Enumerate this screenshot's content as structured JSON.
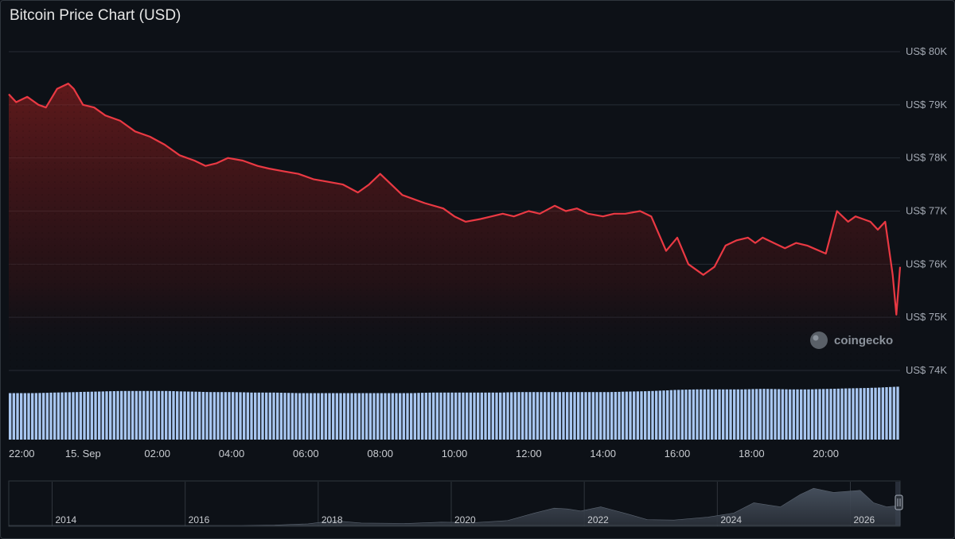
{
  "chart_data": {
    "type": "area",
    "title": "Bitcoin Price Chart (USD)",
    "currency": "USD",
    "y_tick_labels": [
      "US$ 80K",
      "US$ 79K",
      "US$ 78K",
      "US$ 77K",
      "US$ 76K",
      "US$ 75K",
      "US$ 74K"
    ],
    "y_tick_values": [
      80000,
      79000,
      78000,
      77000,
      76000,
      75000,
      74000
    ],
    "ylim": [
      74000,
      80000
    ],
    "x_tick_labels": [
      "22:00",
      "15. Sep",
      "02:00",
      "04:00",
      "06:00",
      "08:00",
      "10:00",
      "12:00",
      "14:00",
      "16:00",
      "18:00",
      "20:00"
    ],
    "x_tick_values": [
      0,
      2,
      4,
      6,
      8,
      10,
      12,
      14,
      16,
      18,
      20,
      22
    ],
    "xlim": [
      0,
      24
    ],
    "grid": true,
    "series": [
      {
        "x": [
          0,
          0.2,
          0.5,
          0.8,
          1.0,
          1.3,
          1.6,
          1.75,
          2.0,
          2.3,
          2.6,
          3.0,
          3.4,
          3.8,
          4.2,
          4.6,
          5.0,
          5.3,
          5.6,
          5.9,
          6.3,
          6.7,
          7.0,
          7.4,
          7.8,
          8.2,
          8.6,
          9.0,
          9.4,
          9.7,
          10.0,
          10.3,
          10.6,
          11.2,
          11.7,
          12.0,
          12.3,
          12.7,
          13.0,
          13.3,
          13.6,
          14.0,
          14.3,
          14.7,
          15.0,
          15.3,
          15.6,
          16.0,
          16.3,
          16.6,
          17.0,
          17.3,
          17.7,
          18.0,
          18.3,
          18.7,
          19.0,
          19.3,
          19.6,
          19.9,
          20.1,
          20.3,
          20.6,
          20.9,
          21.2,
          21.5,
          22.0,
          22.3,
          22.6,
          22.8,
          23.0,
          23.2,
          23.4,
          23.6,
          23.8,
          23.9,
          24.0
        ],
        "y": [
          79200,
          79050,
          79150,
          79000,
          78950,
          79300,
          79400,
          79300,
          79000,
          78950,
          78800,
          78700,
          78500,
          78400,
          78250,
          78050,
          77950,
          77850,
          77900,
          78000,
          77950,
          77850,
          77800,
          77750,
          77700,
          77600,
          77550,
          77500,
          77350,
          77500,
          77700,
          77500,
          77300,
          77150,
          77050,
          76900,
          76800,
          76850,
          76900,
          76950,
          76900,
          77000,
          76950,
          77100,
          77000,
          77050,
          76950,
          76900,
          76950,
          76950,
          77000,
          76900,
          76250,
          76500,
          76000,
          75800,
          75950,
          76350,
          76450,
          76500,
          76400,
          76500,
          76400,
          76300,
          76400,
          76350,
          76200,
          77000,
          76800,
          76900,
          76850,
          76800,
          76650,
          76800,
          75800,
          75050,
          75950
        ]
      }
    ],
    "volume": {
      "values": [
        0.86,
        0.86,
        0.87,
        0.88,
        0.89,
        0.9,
        0.9,
        0.9,
        0.89,
        0.88,
        0.88,
        0.87,
        0.87,
        0.86,
        0.86,
        0.86,
        0.86,
        0.86,
        0.86,
        0.87,
        0.87,
        0.87,
        0.87,
        0.88,
        0.88,
        0.88,
        0.88,
        0.88,
        0.89,
        0.9,
        0.92,
        0.93,
        0.93,
        0.93,
        0.94,
        0.93,
        0.93,
        0.94,
        0.95,
        0.96,
        0.98
      ],
      "color": "#a8c6f0"
    },
    "navigator": {
      "tick_labels": [
        "2014",
        "2016",
        "2018",
        "2020",
        "2022",
        "2024",
        "2026"
      ],
      "tick_values": [
        2013.7,
        2015.7,
        2017.7,
        2019.7,
        2021.7,
        2023.7,
        2025.7
      ],
      "xlim": [
        2013.0,
        2026.4
      ],
      "history_x": [
        2013.0,
        2016.5,
        2017.0,
        2017.5,
        2017.9,
        2018.0,
        2018.3,
        2019.0,
        2019.5,
        2020.0,
        2020.5,
        2020.9,
        2021.2,
        2021.4,
        2021.6,
        2021.9,
        2022.3,
        2022.6,
        2023.0,
        2023.5,
        2023.9,
        2024.2,
        2024.6,
        2024.9,
        2025.1,
        2025.4,
        2025.8,
        2026.0,
        2026.2,
        2026.4
      ],
      "history_y": [
        0.0,
        0.0,
        0.01,
        0.04,
        0.12,
        0.1,
        0.06,
        0.05,
        0.08,
        0.07,
        0.12,
        0.3,
        0.42,
        0.4,
        0.35,
        0.45,
        0.28,
        0.14,
        0.13,
        0.2,
        0.3,
        0.55,
        0.45,
        0.75,
        0.9,
        0.8,
        0.85,
        0.55,
        0.45,
        0.48
      ]
    },
    "line_color": "#ea3943",
    "watermark": "coingecko"
  }
}
